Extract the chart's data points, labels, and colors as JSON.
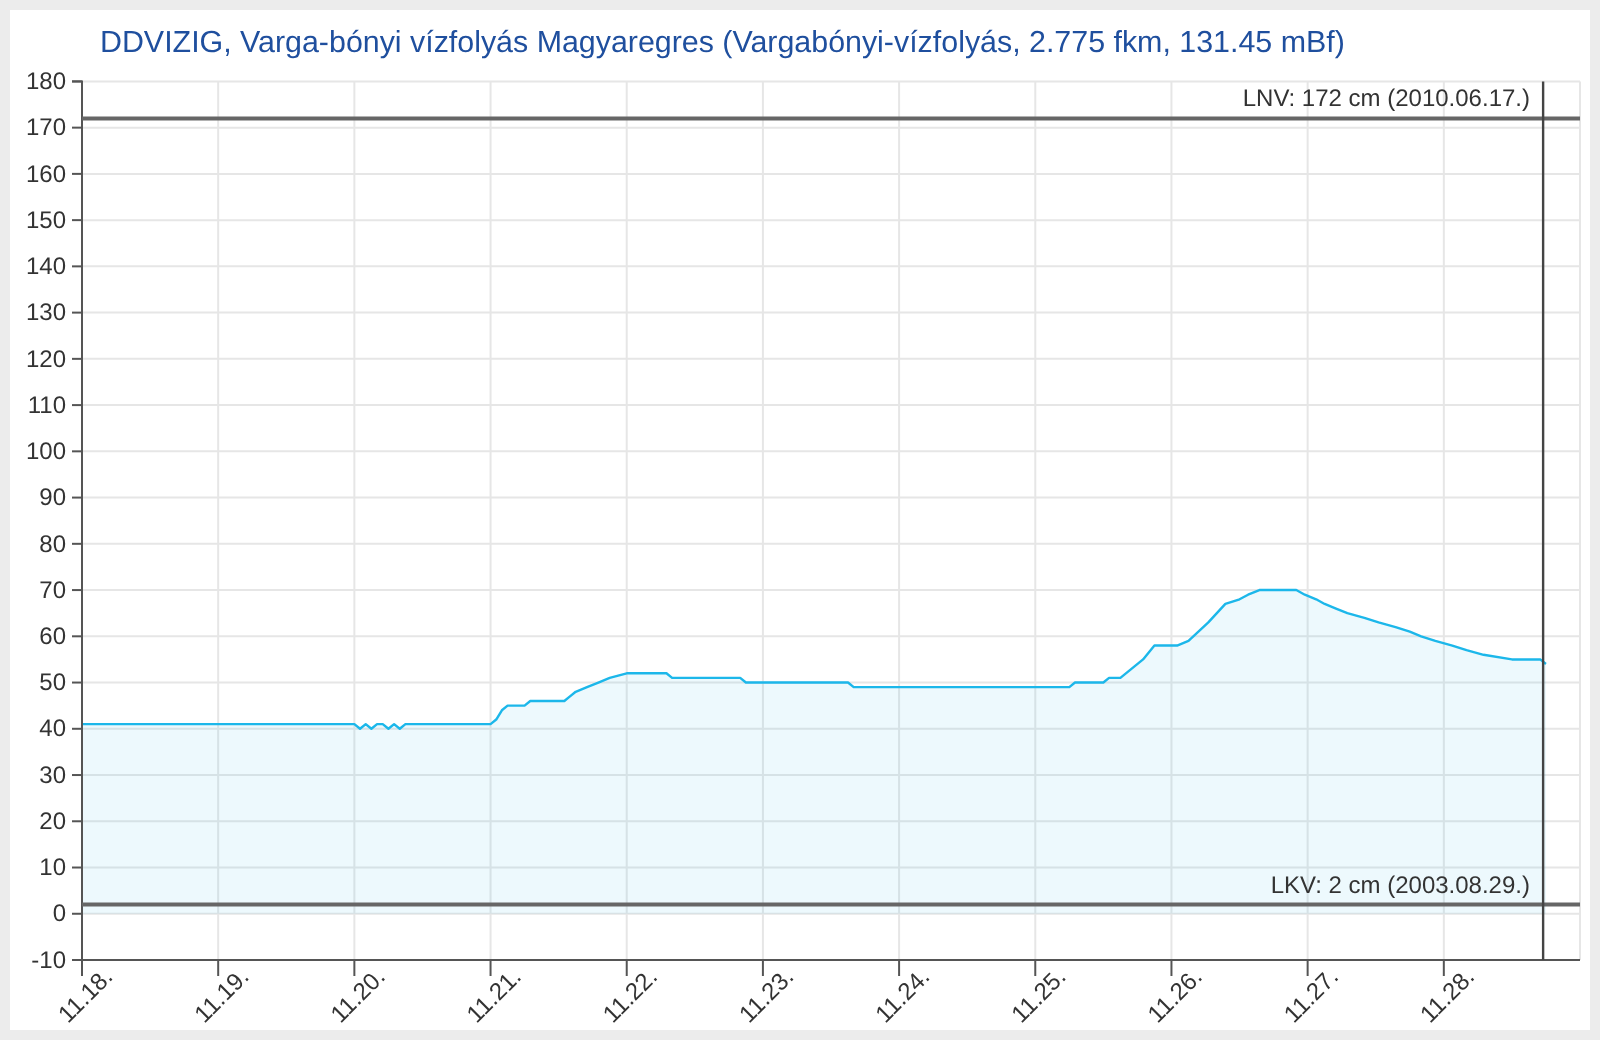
{
  "chart_data": {
    "type": "area",
    "title": "DDVIZIG, Varga-bónyi vízfolyás Magyaregres (Vargabónyi-vízfolyás, 2.775 fkm, 131.45 mBf)",
    "x": [
      "--11-18T00:00",
      "--11-20T00:00",
      "--11-20T01:00",
      "--11-20T02:00",
      "--11-20T03:00",
      "--11-20T04:00",
      "--11-20T05:00",
      "--11-20T06:00",
      "--11-20T07:00",
      "--11-20T08:00",
      "--11-20T09:00",
      "--11-21T00:00",
      "--11-21T01:00",
      "--11-21T02:00",
      "--11-21T03:00",
      "--11-21T06:00",
      "--11-21T07:00",
      "--11-21T13:00",
      "--11-21T14:00",
      "--11-21T15:00",
      "--11-21T17:00",
      "--11-21T19:00",
      "--11-21T21:00",
      "--11-22T00:00",
      "--11-22T07:00",
      "--11-22T08:00",
      "--11-22T20:00",
      "--11-22T21:00",
      "--11-23T15:00",
      "--11-23T16:00",
      "--11-25T06:00",
      "--11-25T07:00",
      "--11-25T12:00",
      "--11-25T13:00",
      "--11-25T15:00",
      "--11-25T17:00",
      "--11-25T19:00",
      "--11-25T21:00",
      "--11-26T01:00",
      "--11-26T03:00",
      "--11-26T06:30",
      "--11-26T09:30",
      "--11-26T12:00",
      "--11-26T13:30",
      "--11-26T15:30",
      "--11-26T22:00",
      "--11-26T23:30",
      "--11-27T01:30",
      "--11-27T03:00",
      "--11-27T05:00",
      "--11-27T07:00",
      "--11-27T10:00",
      "--11-27T12:30",
      "--11-27T15:30",
      "--11-27T18:00",
      "--11-27T20:00",
      "--11-27T22:30",
      "--11-28T01:30",
      "--11-28T04:00",
      "--11-28T07:00",
      "--11-28T12:00",
      "--11-28T17:00",
      "--11-28T18:00"
    ],
    "values": [
      41,
      41,
      40,
      41,
      40,
      41,
      41,
      40,
      41,
      40,
      41,
      41,
      42,
      44,
      45,
      45,
      46,
      46,
      47,
      48,
      49,
      50,
      51,
      52,
      52,
      51,
      51,
      50,
      50,
      49,
      49,
      50,
      50,
      51,
      51,
      53,
      55,
      58,
      58,
      59,
      63,
      67,
      68,
      69,
      70,
      70,
      69,
      68,
      67,
      66,
      65,
      64,
      63,
      62,
      61,
      60,
      59,
      58,
      57,
      56,
      55,
      55,
      54
    ],
    "color": "#1cb7ea",
    "xlim": [
      "--11-18",
      "--11-29"
    ],
    "xticks": [
      {
        "value": "--11-18",
        "label": "11.18."
      },
      {
        "value": "--11-19",
        "label": "11.19."
      },
      {
        "value": "--11-20",
        "label": "11.20."
      },
      {
        "value": "--11-21",
        "label": "11.21."
      },
      {
        "value": "--11-22",
        "label": "11.22."
      },
      {
        "value": "--11-23",
        "label": "11.23."
      },
      {
        "value": "--11-24",
        "label": "11.24."
      },
      {
        "value": "--11-25",
        "label": "11.25."
      },
      {
        "value": "--11-26",
        "label": "11.26."
      },
      {
        "value": "--11-27",
        "label": "11.27."
      },
      {
        "value": "--11-28",
        "label": "11.28."
      }
    ],
    "ylim": [
      -10,
      180
    ],
    "yticks": [
      -10,
      0,
      10,
      20,
      30,
      40,
      50,
      60,
      70,
      80,
      90,
      100,
      110,
      120,
      130,
      140,
      150,
      160,
      170,
      180
    ],
    "grid": true,
    "ref_lines": [
      {
        "axis": "y",
        "value": 172,
        "label": "LNV: 172 cm (2010.06.17.)",
        "color": "#666666"
      },
      {
        "axis": "y",
        "value": 2,
        "label": "LKV: 2 cm (2003.08.29.)",
        "color": "#666666"
      },
      {
        "axis": "x",
        "value": "--11-28T17:30",
        "color": "#444444"
      }
    ]
  }
}
